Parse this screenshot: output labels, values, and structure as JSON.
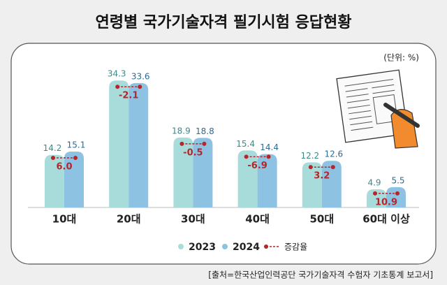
{
  "chart_data": {
    "type": "bar",
    "title": "연령별 국가기술자격 필기시험 응답현황",
    "unit_label": "(단위: %)",
    "categories": [
      "10대",
      "20대",
      "30대",
      "40대",
      "50대",
      "60대 이상"
    ],
    "series": [
      {
        "name": "2023",
        "color": "#a8dcda",
        "label_color": "#3b8a88",
        "values": [
          14.2,
          34.3,
          18.9,
          15.4,
          12.2,
          4.9
        ]
      },
      {
        "name": "2024",
        "color": "#8ec2e2",
        "label_color": "#2d6a96",
        "values": [
          15.1,
          33.6,
          18.8,
          14.4,
          12.6,
          5.5
        ]
      }
    ],
    "change": {
      "name": "증감율",
      "color": "#b3262c",
      "values": [
        6.0,
        -2.1,
        -0.5,
        -6.9,
        3.2,
        10.9
      ],
      "value_labels": [
        "6.0",
        "-2.1",
        "-0.5",
        "-6.9",
        "3.2",
        "10.9"
      ]
    },
    "source": "[출처=한국산업인력공단 국가기술자격 수험자 기초통계 보고서]"
  }
}
